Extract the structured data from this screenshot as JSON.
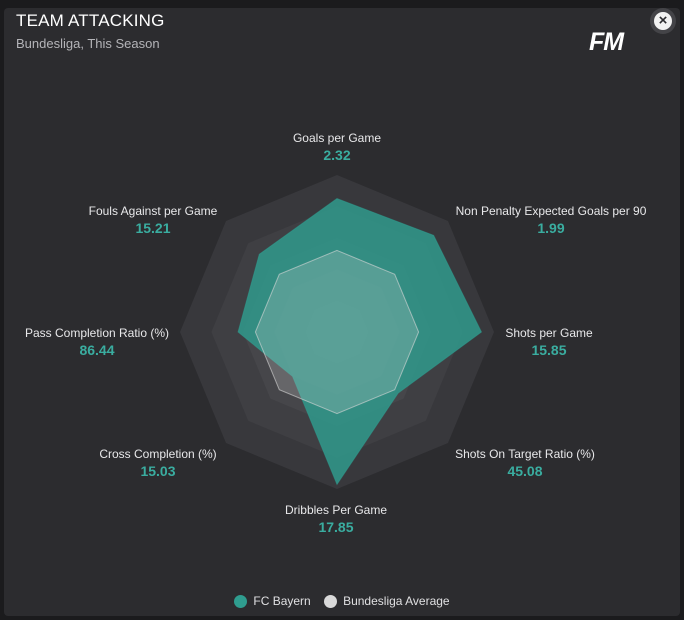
{
  "header": {
    "title": "TEAM ATTACKING",
    "subtitle": "Bundesliga, This Season",
    "logo": "FM",
    "close_icon": "close-icon"
  },
  "colors": {
    "team": "#2f9d8f",
    "average": "#d9d9d9",
    "value": "#3aada0"
  },
  "chart_data": {
    "type": "radar",
    "axes": [
      {
        "label": "Goals per Game",
        "value": "2.32"
      },
      {
        "label": "Non Penalty Expected Goals per 90",
        "value": "1.99"
      },
      {
        "label": "Shots per Game",
        "value": "15.85"
      },
      {
        "label": "Shots On Target Ratio (%)",
        "value": "45.08"
      },
      {
        "label": "Dribbles Per Game",
        "value": "17.85"
      },
      {
        "label": "Cross Completion (%)",
        "value": "15.03"
      },
      {
        "label": "Pass Completion Ratio (%)",
        "value": "86.44"
      },
      {
        "label": "Fouls Against per Game",
        "value": "15.21"
      }
    ],
    "series": [
      {
        "name": "FC Bayern",
        "normalized": [
          0.85,
          0.87,
          0.92,
          0.55,
          0.97,
          0.4,
          0.63,
          0.7
        ]
      },
      {
        "name": "Bundesliga Average",
        "normalized": [
          0.52,
          0.52,
          0.52,
          0.52,
          0.52,
          0.52,
          0.52,
          0.52
        ]
      }
    ],
    "rings": 5,
    "legend_position": "bottom-center"
  }
}
